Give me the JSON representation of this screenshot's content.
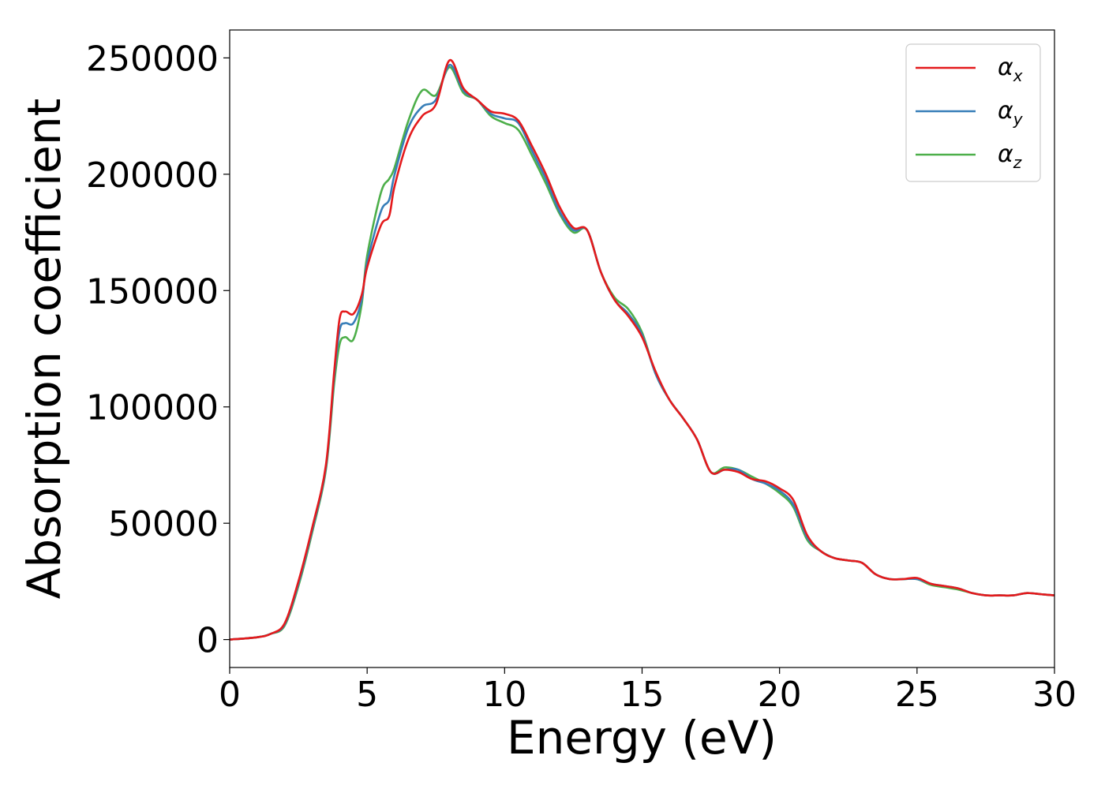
{
  "chart_data": {
    "type": "line",
    "title": "",
    "xlabel": "Energy (eV)",
    "ylabel": "Absorption coefficient",
    "xlim": [
      0,
      30
    ],
    "ylim": [
      -12000,
      262000
    ],
    "xticks": [
      0,
      5,
      10,
      15,
      20,
      25,
      30
    ],
    "yticks": [
      0,
      50000,
      100000,
      150000,
      200000,
      250000
    ],
    "grid": false,
    "legend_position": "top-right",
    "series": [
      {
        "name": "αx",
        "name_base": "α",
        "name_sub": "x",
        "color": "#e41a1c",
        "x": [
          0,
          1,
          1.5,
          2,
          2.5,
          3,
          3.5,
          3.8,
          4,
          4.2,
          4.5,
          4.8,
          5,
          5.5,
          5.8,
          6,
          6.5,
          7,
          7.5,
          8,
          8.5,
          9,
          9.5,
          10,
          10.5,
          11,
          11.5,
          12,
          12.5,
          13,
          13.5,
          14,
          14.5,
          15,
          15.5,
          16,
          16.5,
          17,
          17.5,
          18,
          18.5,
          19,
          19.5,
          20,
          20.5,
          21,
          21.5,
          22,
          22.5,
          23,
          23.5,
          24,
          24.5,
          25,
          25.5,
          26,
          26.5,
          27,
          27.5,
          28,
          28.5,
          29,
          29.5,
          30
        ],
        "y": [
          0,
          1000,
          2500,
          7000,
          25000,
          48000,
          75000,
          115000,
          138000,
          141000,
          140000,
          148000,
          160000,
          178000,
          182000,
          195000,
          215000,
          225000,
          230000,
          249000,
          237000,
          232000,
          227000,
          226000,
          223000,
          212000,
          200000,
          186000,
          177000,
          176000,
          158000,
          146000,
          139000,
          130000,
          115000,
          103000,
          95000,
          86000,
          72000,
          73000,
          72000,
          69000,
          68000,
          65000,
          60000,
          45000,
          38000,
          35000,
          34000,
          33000,
          28000,
          26000,
          26000,
          26500,
          24000,
          23000,
          22000,
          20000,
          19000,
          19000,
          19000,
          20000,
          19500,
          19000
        ]
      },
      {
        "name": "αy",
        "name_base": "α",
        "name_sub": "y",
        "color": "#377eb8",
        "x": [
          0,
          1,
          1.5,
          2,
          2.5,
          3,
          3.5,
          3.8,
          4,
          4.2,
          4.5,
          4.8,
          5,
          5.5,
          5.8,
          6,
          6.5,
          7,
          7.5,
          8,
          8.5,
          9,
          9.5,
          10,
          10.5,
          11,
          11.5,
          12,
          12.5,
          13,
          13.5,
          14,
          14.5,
          15,
          15.5,
          16,
          16.5,
          17,
          17.5,
          18,
          18.5,
          19,
          19.5,
          20,
          20.5,
          21,
          21.5,
          22,
          22.5,
          23,
          23.5,
          24,
          24.5,
          25,
          25.5,
          26,
          26.5,
          27,
          27.5,
          28,
          28.5,
          29,
          29.5,
          30
        ],
        "y": [
          0,
          1000,
          2500,
          6500,
          24000,
          47000,
          74000,
          113000,
          133000,
          136000,
          136000,
          146000,
          162000,
          184000,
          189000,
          200000,
          220000,
          229000,
          232000,
          247000,
          236000,
          232000,
          226000,
          224000,
          222000,
          210000,
          198000,
          184000,
          176000,
          176000,
          158000,
          146000,
          140000,
          131000,
          114000,
          103000,
          95000,
          86000,
          72000,
          73000,
          73000,
          69000,
          67000,
          64000,
          58000,
          44000,
          38000,
          35000,
          34000,
          33000,
          28000,
          26000,
          26000,
          26000,
          24000,
          23000,
          22000,
          20000,
          19000,
          19000,
          19000,
          20000,
          19500,
          19000
        ]
      },
      {
        "name": "αz",
        "name_base": "α",
        "name_sub": "z",
        "color": "#4daf4a",
        "x": [
          0,
          1,
          1.5,
          2,
          2.5,
          3,
          3.5,
          3.8,
          4,
          4.2,
          4.5,
          4.8,
          5,
          5.5,
          5.8,
          6,
          6.5,
          7,
          7.5,
          8,
          8.5,
          9,
          9.5,
          10,
          10.5,
          11,
          11.5,
          12,
          12.5,
          13,
          13.5,
          14,
          14.5,
          15,
          15.5,
          16,
          16.5,
          17,
          17.5,
          18,
          18.5,
          19,
          19.5,
          20,
          20.5,
          21,
          21.5,
          22,
          22.5,
          23,
          23.5,
          24,
          24.5,
          25,
          25.5,
          26,
          26.5,
          27,
          27.5,
          28,
          28.5,
          29,
          29.5,
          30
        ],
        "y": [
          0,
          1000,
          2500,
          6000,
          23000,
          46000,
          73000,
          110000,
          127000,
          130000,
          129000,
          144000,
          165000,
          192000,
          198000,
          203000,
          223000,
          236000,
          234000,
          246000,
          235000,
          232000,
          225000,
          222000,
          219000,
          208000,
          196000,
          183000,
          175000,
          176000,
          158000,
          147000,
          142000,
          132000,
          114000,
          103000,
          95000,
          86000,
          72000,
          74000,
          73000,
          70000,
          67000,
          63000,
          57000,
          43000,
          38000,
          35000,
          34000,
          33000,
          28000,
          26000,
          26000,
          26000,
          23500,
          22500,
          21500,
          20000,
          19000,
          19000,
          19000,
          20000,
          19500,
          19000
        ]
      }
    ]
  }
}
